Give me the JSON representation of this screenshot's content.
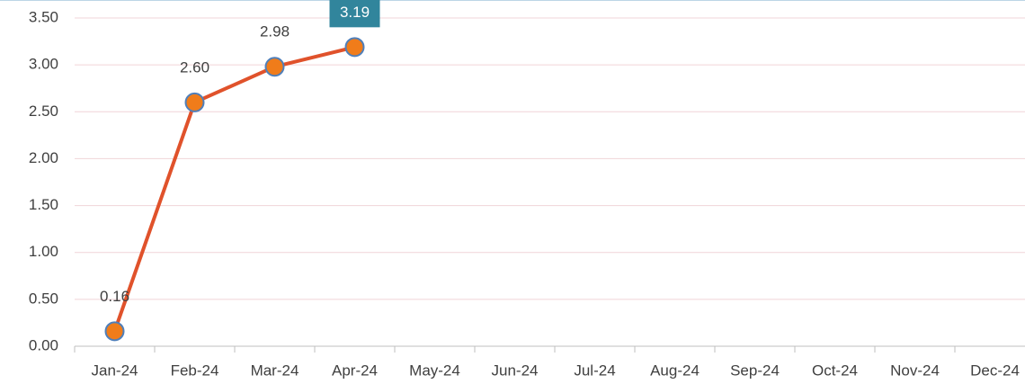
{
  "chart_data": {
    "type": "line",
    "categories": [
      "Jan-24",
      "Feb-24",
      "Mar-24",
      "Apr-24",
      "May-24",
      "Jun-24",
      "Jul-24",
      "Aug-24",
      "Sep-24",
      "Oct-24",
      "Nov-24",
      "Dec-24"
    ],
    "values": [
      0.16,
      2.6,
      2.98,
      3.19,
      null,
      null,
      null,
      null,
      null,
      null,
      null,
      null
    ],
    "value_labels": [
      "0.16",
      "2.60",
      "2.98",
      "3.19",
      null,
      null,
      null,
      null,
      null,
      null,
      null,
      null
    ],
    "color": "#e0522b",
    "marker_color": "#f07c1a",
    "marker_edge_color": "#4f7fba",
    "label_box_color": "#31859c",
    "ylim": [
      0,
      3.5
    ],
    "yticks": [
      {
        "value": 0,
        "label": "0.00"
      },
      {
        "value": 0.5,
        "label": "0.50"
      },
      {
        "value": 1,
        "label": "1.00"
      },
      {
        "value": 1.5,
        "label": "1.50"
      },
      {
        "value": 2,
        "label": "2.00"
      },
      {
        "value": 2.5,
        "label": "2.50"
      },
      {
        "value": 3,
        "label": "3.00"
      },
      {
        "value": 3.5,
        "label": "3.50"
      }
    ],
    "grid": true
  }
}
